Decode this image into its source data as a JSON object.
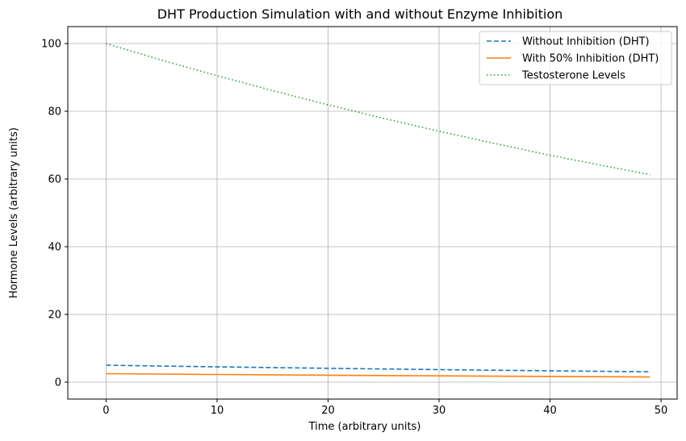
{
  "chart_data": {
    "type": "line",
    "title": "DHT Production Simulation with and without Enzyme Inhibition",
    "xlabel": "Time (arbitrary units)",
    "ylabel": "Hormone Levels (arbitrary units)",
    "xlim": [
      -3.45,
      51.45
    ],
    "ylim": [
      -5,
      105
    ],
    "xticks": [
      0,
      10,
      20,
      30,
      40,
      50
    ],
    "yticks": [
      0,
      20,
      40,
      60,
      80,
      100
    ],
    "grid": true,
    "legend_position": "top-right",
    "series": [
      {
        "name": "Without Inhibition (DHT)",
        "color": "#1f77b4",
        "style": "dashed",
        "x": [
          0,
          5,
          10,
          15,
          20,
          25,
          30,
          35,
          40,
          45,
          49
        ],
        "values": [
          5.0,
          4.76,
          4.52,
          4.3,
          4.09,
          3.89,
          3.7,
          3.52,
          3.35,
          3.19,
          3.06
        ]
      },
      {
        "name": "With 50% Inhibition (DHT)",
        "color": "#ff7f0e",
        "style": "solid",
        "x": [
          0,
          5,
          10,
          15,
          20,
          25,
          30,
          35,
          40,
          45,
          49
        ],
        "values": [
          2.5,
          2.38,
          2.26,
          2.15,
          2.05,
          1.95,
          1.85,
          1.76,
          1.68,
          1.6,
          1.53
        ]
      },
      {
        "name": "Testosterone Levels",
        "color": "#2ca02c",
        "style": "dotted",
        "x": [
          0,
          5,
          10,
          15,
          20,
          25,
          30,
          35,
          40,
          45,
          49
        ],
        "values": [
          100,
          95.1,
          90.5,
          86.1,
          81.9,
          77.9,
          74.1,
          70.5,
          67.0,
          63.8,
          61.3
        ]
      }
    ]
  }
}
